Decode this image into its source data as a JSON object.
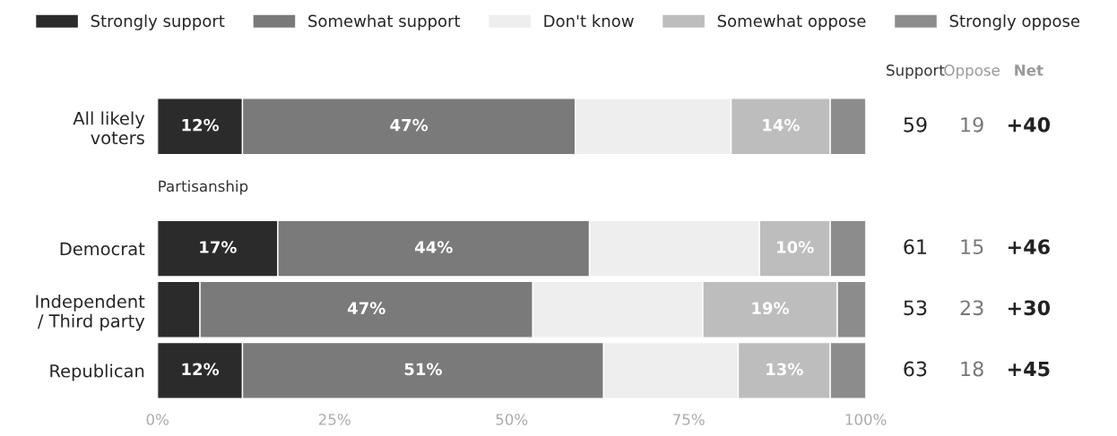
{
  "chart_data": {
    "type": "bar",
    "orientation": "horizontal",
    "stacked": true,
    "categories": [
      "All likely\nvoters",
      null,
      "Democrat",
      "Independent\n/ Third party",
      "Republican"
    ],
    "series": [
      {
        "name": "Strongly support",
        "color": "#2b2b2b",
        "values": [
          12,
          null,
          17,
          6,
          12
        ],
        "value_labels": [
          "12%",
          null,
          "17%",
          null,
          "12%"
        ]
      },
      {
        "name": "Somewhat support",
        "color": "#7a7a7a",
        "values": [
          47,
          null,
          44,
          47,
          51
        ],
        "value_labels": [
          "47%",
          null,
          "44%",
          "47%",
          "51%"
        ]
      },
      {
        "name": "Don't know",
        "color": "#eeeeee",
        "values": [
          22,
          null,
          24,
          24,
          19
        ],
        "value_labels": [
          null,
          null,
          null,
          null,
          null
        ]
      },
      {
        "name": "Somewhat oppose",
        "color": "#bdbdbd",
        "values": [
          14,
          null,
          10,
          19,
          13
        ],
        "value_labels": [
          "14%",
          null,
          "10%",
          "19%",
          "13%"
        ]
      },
      {
        "name": "Strongly oppose",
        "color": "#8c8c8c",
        "values": [
          5,
          null,
          5,
          4,
          5
        ],
        "value_labels": [
          null,
          null,
          null,
          null,
          null
        ]
      }
    ],
    "xlim": [
      0,
      100
    ],
    "xticks": [
      {
        "value": 0,
        "label": "0%"
      },
      {
        "value": 25,
        "label": "25%"
      },
      {
        "value": 50,
        "label": "50%"
      },
      {
        "value": 75,
        "label": "75%"
      },
      {
        "value": 100,
        "label": "100%"
      }
    ],
    "legend": "top",
    "grid": false,
    "annotations": [
      "Partisanship",
      "Support",
      "Oppose",
      "Net",
      "59",
      "19",
      "+40",
      "61",
      "15",
      "+46",
      "53",
      "23",
      "+30",
      "63",
      "18",
      "+45"
    ]
  }
}
